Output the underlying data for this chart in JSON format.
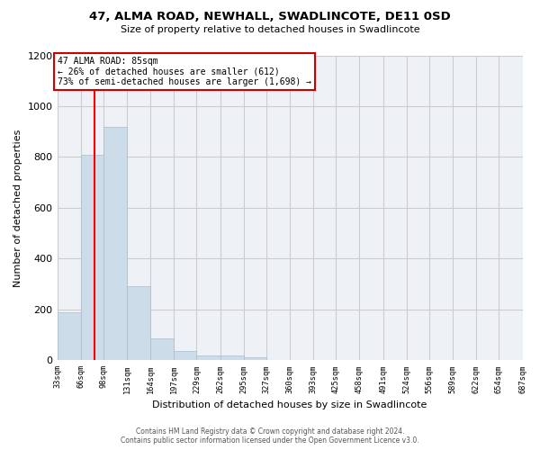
{
  "title": "47, ALMA ROAD, NEWHALL, SWADLINCOTE, DE11 0SD",
  "subtitle": "Size of property relative to detached houses in Swadlincote",
  "xlabel": "Distribution of detached houses by size in Swadlincote",
  "ylabel": "Number of detached properties",
  "bin_edges": [
    33,
    66,
    98,
    131,
    164,
    197,
    229,
    262,
    295,
    327,
    360,
    393,
    425,
    458,
    491,
    524,
    556,
    589,
    622,
    654,
    687
  ],
  "bin_labels": [
    "33sqm",
    "66sqm",
    "98sqm",
    "131sqm",
    "164sqm",
    "197sqm",
    "229sqm",
    "262sqm",
    "295sqm",
    "327sqm",
    "360sqm",
    "393sqm",
    "425sqm",
    "458sqm",
    "491sqm",
    "524sqm",
    "556sqm",
    "589sqm",
    "622sqm",
    "654sqm",
    "687sqm"
  ],
  "bar_heights": [
    190,
    810,
    920,
    290,
    85,
    35,
    20,
    18,
    12,
    0,
    0,
    0,
    0,
    0,
    0,
    0,
    0,
    0,
    0,
    0
  ],
  "bar_color": "#ccdce8",
  "bar_edge_color": "#aabccc",
  "red_line_x": 85,
  "annotation_text": "47 ALMA ROAD: 85sqm\n← 26% of detached houses are smaller (612)\n73% of semi-detached houses are larger (1,698) →",
  "annotation_box_color": "#ffffff",
  "annotation_box_edge": "#cc0000",
  "ylim": [
    0,
    1200
  ],
  "yticks": [
    0,
    200,
    400,
    600,
    800,
    1000,
    1200
  ],
  "grid_color": "#cccccc",
  "background_color": "#eef2f7",
  "footer_line1": "Contains HM Land Registry data © Crown copyright and database right 2024.",
  "footer_line2": "Contains public sector information licensed under the Open Government Licence v3.0."
}
